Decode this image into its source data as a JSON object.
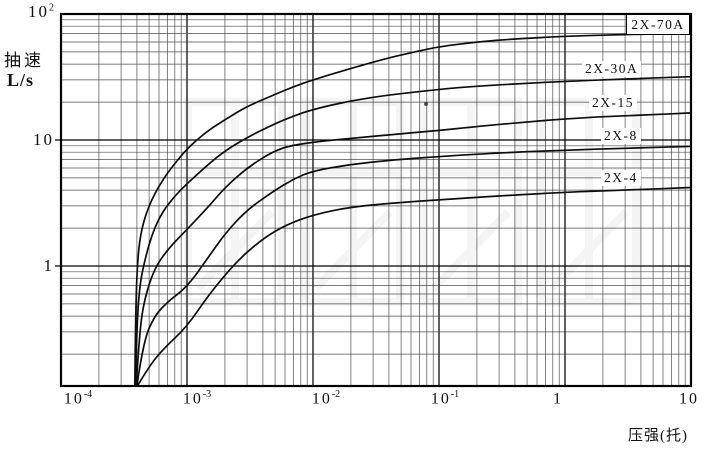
{
  "axes": {
    "x": {
      "label": "压强(托)",
      "ticks": [
        {
          "base": "10",
          "exp": "-4"
        },
        {
          "base": "10",
          "exp": "-3"
        },
        {
          "base": "10",
          "exp": "-2"
        },
        {
          "base": "10",
          "exp": "-1"
        },
        {
          "base": "1",
          "exp": ""
        },
        {
          "base": "10",
          "exp": ""
        }
      ]
    },
    "y": {
      "unit_line1": "抽速",
      "unit_line2": "L/s",
      "ticks": [
        {
          "base": "10",
          "exp": "2"
        },
        {
          "base": "10",
          "exp": ""
        },
        {
          "base": "1",
          "exp": ""
        }
      ]
    }
  },
  "chart_data": {
    "type": "line",
    "title": "",
    "xlabel": "压强(托)",
    "ylabel": "抽速 L/s",
    "x_scale": "log",
    "y_scale": "log",
    "xlim": [
      0.0001,
      10
    ],
    "ylim": [
      0.112,
      100
    ],
    "grid": true,
    "legend_position": "inline-labels",
    "series": [
      {
        "name": "2X-70A",
        "points": [
          [
            0.000385,
            0.112
          ],
          [
            0.00039,
            0.35
          ],
          [
            0.0004,
            0.9
          ],
          [
            0.00042,
            1.6
          ],
          [
            0.00046,
            2.4
          ],
          [
            0.00052,
            3.3
          ],
          [
            0.0006,
            4.3
          ],
          [
            0.0007,
            5.5
          ],
          [
            0.00085,
            7.0
          ],
          [
            0.001,
            8.5
          ],
          [
            0.0014,
            11.5
          ],
          [
            0.002,
            14.5
          ],
          [
            0.003,
            18.5
          ],
          [
            0.005,
            23.0
          ],
          [
            0.007,
            26.5
          ],
          [
            0.01,
            30.0
          ],
          [
            0.02,
            37.0
          ],
          [
            0.04,
            45.0
          ],
          [
            0.07,
            51.0
          ],
          [
            0.1,
            55.0
          ],
          [
            0.2,
            60.0
          ],
          [
            0.4,
            63.5
          ],
          [
            1.0,
            66.5
          ],
          [
            2.0,
            68.0
          ],
          [
            5.0,
            69.5
          ],
          [
            10.0,
            70.5
          ]
        ]
      },
      {
        "name": "2X-30A",
        "points": [
          [
            0.00039,
            0.112
          ],
          [
            0.000398,
            0.3
          ],
          [
            0.00042,
            0.7
          ],
          [
            0.00047,
            1.2
          ],
          [
            0.00054,
            1.9
          ],
          [
            0.00064,
            2.7
          ],
          [
            0.0008,
            3.6
          ],
          [
            0.001,
            4.5
          ],
          [
            0.0015,
            6.5
          ],
          [
            0.002,
            8.2
          ],
          [
            0.003,
            10.5
          ],
          [
            0.005,
            13.5
          ],
          [
            0.007,
            15.5
          ],
          [
            0.01,
            17.5
          ],
          [
            0.02,
            20.5
          ],
          [
            0.04,
            22.8
          ],
          [
            0.1,
            25.2
          ],
          [
            0.2,
            26.8
          ],
          [
            0.5,
            28.2
          ],
          [
            1.0,
            29.2
          ],
          [
            3.0,
            30.5
          ],
          [
            10.0,
            31.8
          ]
        ]
      },
      {
        "name": "2X-15",
        "points": [
          [
            0.000395,
            0.112
          ],
          [
            0.00042,
            0.3
          ],
          [
            0.00046,
            0.55
          ],
          [
            0.00055,
            0.95
          ],
          [
            0.0007,
            1.35
          ],
          [
            0.001,
            1.95
          ],
          [
            0.0015,
            3.0
          ],
          [
            0.002,
            4.2
          ],
          [
            0.003,
            6.0
          ],
          [
            0.0045,
            7.8
          ],
          [
            0.006,
            8.8
          ],
          [
            0.008,
            9.3
          ],
          [
            0.012,
            9.8
          ],
          [
            0.02,
            10.3
          ],
          [
            0.04,
            11.0
          ],
          [
            0.1,
            11.9
          ],
          [
            0.2,
            12.8
          ],
          [
            0.5,
            13.9
          ],
          [
            1.0,
            14.7
          ],
          [
            2.0,
            15.3
          ],
          [
            5.0,
            15.9
          ],
          [
            10.0,
            16.4
          ]
        ]
      },
      {
        "name": "2X-8",
        "points": [
          [
            0.0004,
            0.112
          ],
          [
            0.00045,
            0.25
          ],
          [
            0.00055,
            0.4
          ],
          [
            0.0007,
            0.52
          ],
          [
            0.001,
            0.68
          ],
          [
            0.0015,
            1.2
          ],
          [
            0.002,
            1.8
          ],
          [
            0.003,
            2.8
          ],
          [
            0.005,
            4.0
          ],
          [
            0.007,
            4.9
          ],
          [
            0.01,
            5.7
          ],
          [
            0.02,
            6.4
          ],
          [
            0.04,
            6.9
          ],
          [
            0.1,
            7.4
          ],
          [
            0.3,
            7.9
          ],
          [
            1.0,
            8.3
          ],
          [
            3.0,
            8.6
          ],
          [
            10.0,
            8.9
          ]
        ]
      },
      {
        "name": "2X-4",
        "points": [
          [
            0.000405,
            0.112
          ],
          [
            0.0005,
            0.16
          ],
          [
            0.00065,
            0.22
          ],
          [
            0.001,
            0.33
          ],
          [
            0.0015,
            0.6
          ],
          [
            0.0025,
            1.1
          ],
          [
            0.004,
            1.65
          ],
          [
            0.006,
            2.1
          ],
          [
            0.01,
            2.55
          ],
          [
            0.02,
            2.95
          ],
          [
            0.05,
            3.2
          ],
          [
            0.1,
            3.35
          ],
          [
            0.3,
            3.6
          ],
          [
            1.0,
            3.85
          ],
          [
            3.0,
            4.0
          ],
          [
            10.0,
            4.2
          ]
        ]
      }
    ]
  }
}
